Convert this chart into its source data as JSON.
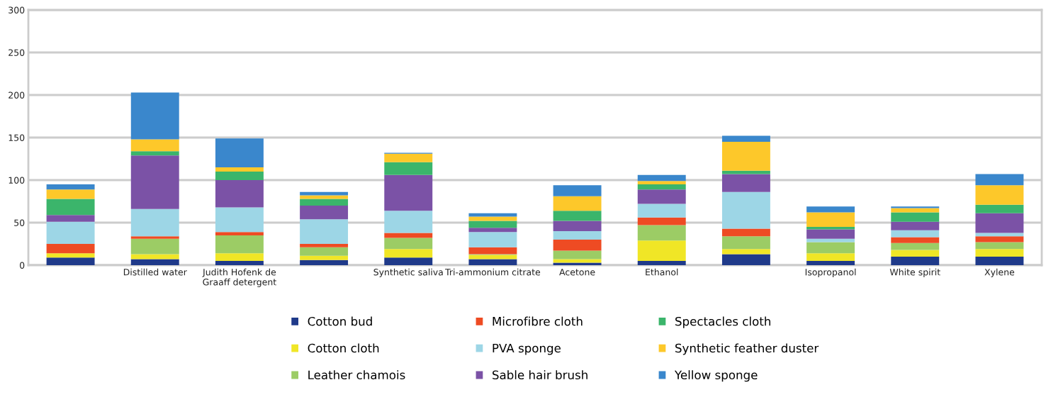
{
  "chart_data": {
    "type": "bar",
    "stacked": true,
    "categories": [
      null,
      "Distilled water",
      "Judith Hofenk de Graaff detergent",
      null,
      "Synthetic saliva",
      "Tri-ammonium citrate",
      "Acetone",
      "Ethanol",
      null,
      "Isopropanol",
      "White spirit",
      "Xylene"
    ],
    "series": [
      {
        "name": "Cotton bud",
        "color": "#1f3a8a",
        "values": [
          9,
          7,
          5,
          6,
          9,
          7,
          3,
          5,
          13,
          5,
          10,
          10
        ]
      },
      {
        "name": "Cotton cloth",
        "color": "#f0e626",
        "values": [
          5,
          6,
          9,
          5,
          10,
          5,
          4,
          24,
          6,
          9,
          8,
          9
        ]
      },
      {
        "name": "Leather chamois",
        "color": "#9ccc65",
        "values": [
          0,
          18,
          21,
          10,
          13,
          1,
          10,
          18,
          15,
          13,
          8,
          8
        ]
      },
      {
        "name": "Microfibre cloth",
        "color": "#ee4b23",
        "values": [
          11,
          3,
          4,
          4,
          6,
          8,
          13,
          9,
          9,
          0,
          7,
          7
        ]
      },
      {
        "name": "PVA sponge",
        "color": "#9dd6e6",
        "values": [
          26,
          32,
          29,
          29,
          26,
          18,
          10,
          16,
          43,
          4,
          8,
          4
        ]
      },
      {
        "name": "Sable hair brush",
        "color": "#7b52a6",
        "values": [
          8,
          63,
          32,
          16,
          42,
          5,
          12,
          17,
          21,
          11,
          10,
          23
        ]
      },
      {
        "name": "Spectacles cloth",
        "color": "#3bb56b",
        "values": [
          19,
          5,
          10,
          8,
          15,
          8,
          12,
          6,
          4,
          3,
          11,
          10
        ]
      },
      {
        "name": "Synthetic feather duster",
        "color": "#fdc82a",
        "values": [
          11,
          14,
          5,
          4,
          10,
          5,
          17,
          4,
          34,
          17,
          5,
          23
        ]
      },
      {
        "name": "Yellow sponge",
        "color": "#3a87cc",
        "values": [
          6,
          55,
          34,
          4,
          1,
          4,
          13,
          7,
          7,
          7,
          2,
          13
        ]
      }
    ],
    "ylim": [
      0,
      300
    ],
    "yticks": [
      0,
      50,
      100,
      150,
      200,
      250,
      300
    ],
    "grid": "y",
    "legend": "bottom"
  }
}
